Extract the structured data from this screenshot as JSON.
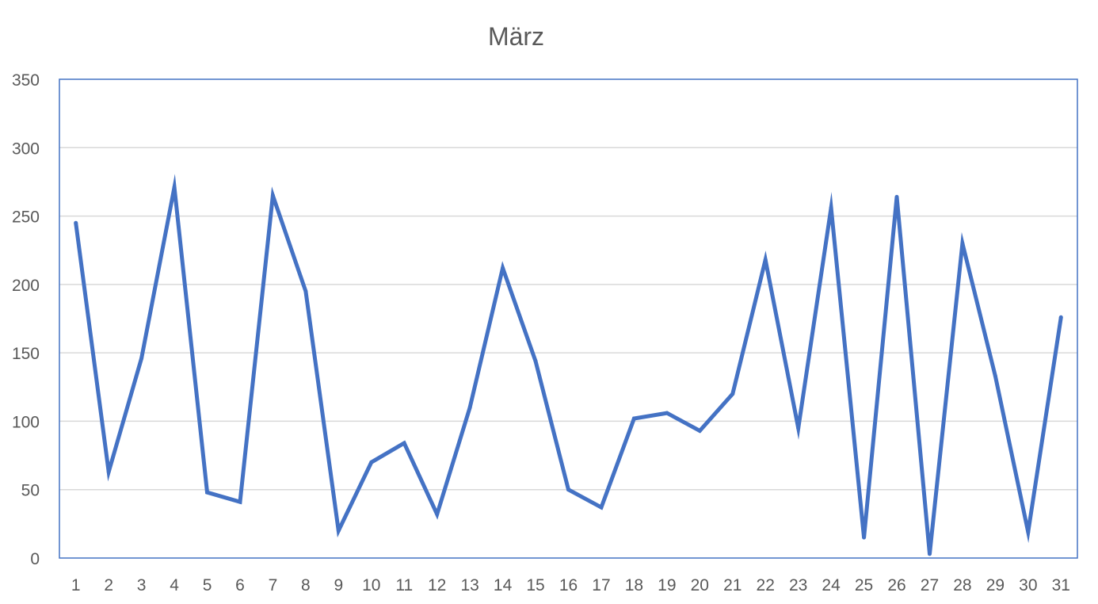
{
  "chart_data": {
    "type": "line",
    "title": "März",
    "xlabel": "",
    "ylabel": "",
    "categories": [
      "1",
      "2",
      "3",
      "4",
      "5",
      "6",
      "7",
      "8",
      "9",
      "10",
      "11",
      "12",
      "13",
      "14",
      "15",
      "16",
      "17",
      "18",
      "19",
      "20",
      "21",
      "22",
      "23",
      "24",
      "25",
      "26",
      "27",
      "28",
      "29",
      "30",
      "31"
    ],
    "series": [
      {
        "values": [
          245,
          63,
          146,
          271,
          48,
          41,
          265,
          195,
          20,
          70,
          84,
          32,
          110,
          212,
          144,
          50,
          37,
          102,
          106,
          93,
          120,
          218,
          95,
          256,
          15,
          264,
          3,
          230,
          133,
          19,
          176
        ],
        "color": "#4472C4"
      }
    ],
    "ylim": [
      0,
      350
    ],
    "yticks": [
      "0",
      "50",
      "100",
      "150",
      "200",
      "250",
      "300",
      "350"
    ],
    "grid": true,
    "legend": "none",
    "colors": {
      "line": "#4472C4",
      "frame": "#4472C4",
      "grid": "#D9D9D9",
      "text": "#595959"
    }
  }
}
